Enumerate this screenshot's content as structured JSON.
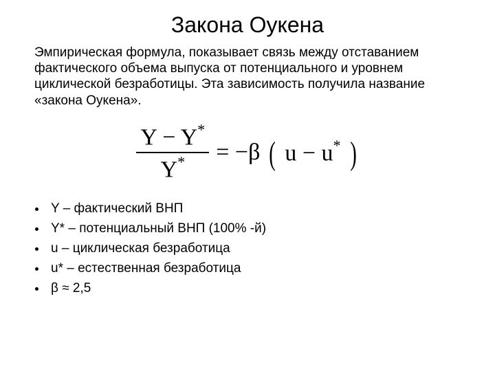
{
  "title": "Закона Оукена",
  "description": "Эмпирическая формула, показывает связь между отставанием фактического объема выпуска от потенциального и уровнем циклической безработицы. Эта зависимость получила название «закона Оукена».",
  "formula": {
    "numerator": "Y − Y",
    "numerator_sup": "*",
    "denominator": "Y",
    "denominator_sup": "*",
    "equals": "= −β",
    "lparen": "(",
    "inner_left": "u − u",
    "inner_sup": "*",
    "rparen": ")",
    "font_family": "Times New Roman",
    "font_size_pt": 26,
    "color": "#000000"
  },
  "definitions": [
    "Y – фактический ВНП",
    "Y* – потенциальный ВНП (100% -й)",
    "u – циклическая безработица",
    "u* – естественная безработица",
    "β ≈ 2,5"
  ],
  "style": {
    "background_color": "#ffffff",
    "text_color": "#000000",
    "title_fontsize": 32,
    "body_fontsize": 19,
    "bullet_char": "•"
  }
}
